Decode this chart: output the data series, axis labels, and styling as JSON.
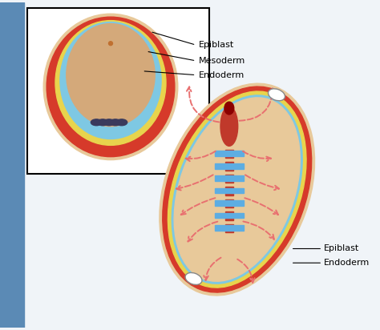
{
  "background_color": "#f0f4f8",
  "left_panel_color": "#ffffff",
  "side_bar_color": "#5b8ab5",
  "embryo_outer_skin": "#e8c99a",
  "embryo_red_layer": "#d63a2a",
  "embryo_yellow_layer": "#e8d44d",
  "embryo_blue_layer": "#7ec8e3",
  "embryo_inner": "#d4a97a",
  "top_labels": [
    "Epiblast",
    "Mesoderm",
    "Endoderm"
  ],
  "bottom_labels": [
    "Epiblast",
    "Endoderm"
  ],
  "arrow_color": "#e87070",
  "notochord_red": "#c0392b",
  "primitive_streak_blue": "#5dade2"
}
